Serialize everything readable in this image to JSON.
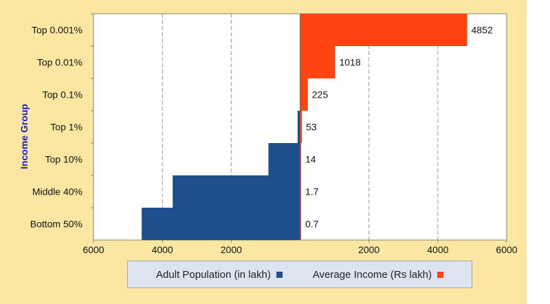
{
  "chart_data": {
    "type": "bar",
    "orientation": "horizontal",
    "ylabel": "Income Group",
    "categories": [
      "Top 0.001%",
      "Top 0.01%",
      "Top 0.1%",
      "Top 1%",
      "Top 10%",
      "Middle 40%",
      "Bottom 50%"
    ],
    "series": [
      {
        "name": "Adult Population (in lakh)",
        "color": "#1F4E8C",
        "side": "left",
        "values": [
          0.08,
          0.8,
          8,
          72,
          920,
          3700,
          4600
        ]
      },
      {
        "name": "Average Income (Rs lakh)",
        "color": "#FF4411",
        "side": "right",
        "values": [
          4852,
          1018,
          225,
          53,
          14,
          1.7,
          0.7
        ],
        "data_labels": [
          "4852",
          "1018",
          "225",
          "53",
          "14",
          "1.7",
          "0.7"
        ]
      }
    ],
    "x_ticks": [
      {
        "value": -6000,
        "label": "6000"
      },
      {
        "value": -4000,
        "label": "4000"
      },
      {
        "value": -2000,
        "label": "2000"
      },
      {
        "value": 2000,
        "label": "2000"
      },
      {
        "value": 4000,
        "label": "4000"
      },
      {
        "value": 6000,
        "label": "6000"
      }
    ],
    "xlim": [
      -6000,
      6000
    ],
    "grid": true,
    "legend_position": "bottom"
  }
}
